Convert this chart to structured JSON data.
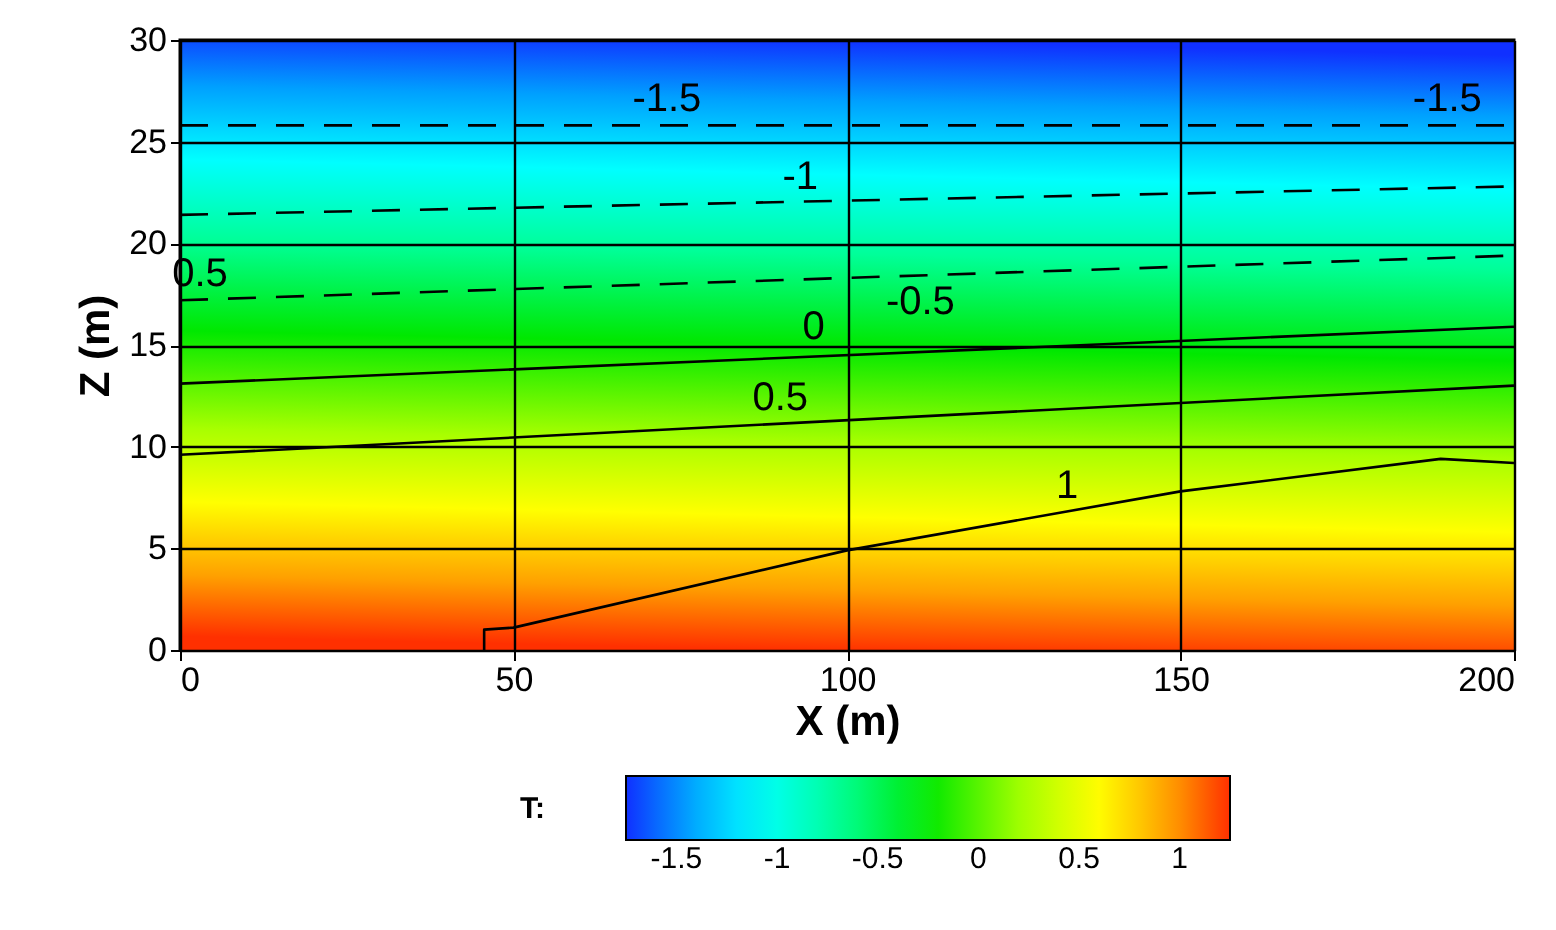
{
  "chart_data": {
    "type": "line",
    "xlabel": "X (m)",
    "ylabel": "Z (m)",
    "legend_title": "T:",
    "clim": [
      -1.75,
      1.25
    ],
    "cticks": [
      -1.5,
      -1,
      -0.5,
      0,
      0.5,
      1
    ],
    "xlim": [
      0,
      200
    ],
    "xticks": [
      0,
      50,
      100,
      150,
      200
    ],
    "ylim": [
      0,
      30
    ],
    "yticks": [
      0,
      5,
      10,
      15,
      20,
      25,
      30
    ],
    "grid": true,
    "series": [
      {
        "color": "#000000",
        "line_style": "dashed",
        "x": [
          0,
          200
        ],
        "values": [
          25.8,
          25.8
        ]
      },
      {
        "color": "#000000",
        "line_style": "dashed",
        "x": [
          0,
          200
        ],
        "values": [
          21.4,
          22.8
        ]
      },
      {
        "color": "#000000",
        "line_style": "dashed",
        "x": [
          0,
          200
        ],
        "values": [
          17.2,
          19.4
        ]
      },
      {
        "color": "#000000",
        "line_style": "solid",
        "x": [
          0,
          200
        ],
        "values": [
          13.1,
          15.9
        ]
      },
      {
        "color": "#000000",
        "line_style": "solid",
        "x": [
          0,
          200
        ],
        "values": [
          9.6,
          13.0
        ]
      },
      {
        "color": "#000000",
        "line_style": "solid",
        "x": [
          45.6,
          45.6,
          50,
          100,
          150,
          189,
          200
        ],
        "values": [
          0,
          1,
          1.1,
          4.9,
          7.8,
          9.4,
          9.2
        ]
      }
    ],
    "annotations": [
      {
        "text": "-1.5",
        "x": 73,
        "y": 25.8
      },
      {
        "text": "-1.5",
        "x": 190,
        "y": 25.8
      },
      {
        "text": "-1",
        "x": 93,
        "y": 22.0
      },
      {
        "text": "-0.5",
        "x": 111,
        "y": 18.4
      },
      {
        "text": "0.5",
        "x": 3,
        "y": 17.2
      },
      {
        "text": "0",
        "x": 95,
        "y": 14.6
      },
      {
        "text": "0.5",
        "x": 90,
        "y": 11.1
      },
      {
        "text": "1",
        "x": 133,
        "y": 6.8
      }
    ]
  }
}
